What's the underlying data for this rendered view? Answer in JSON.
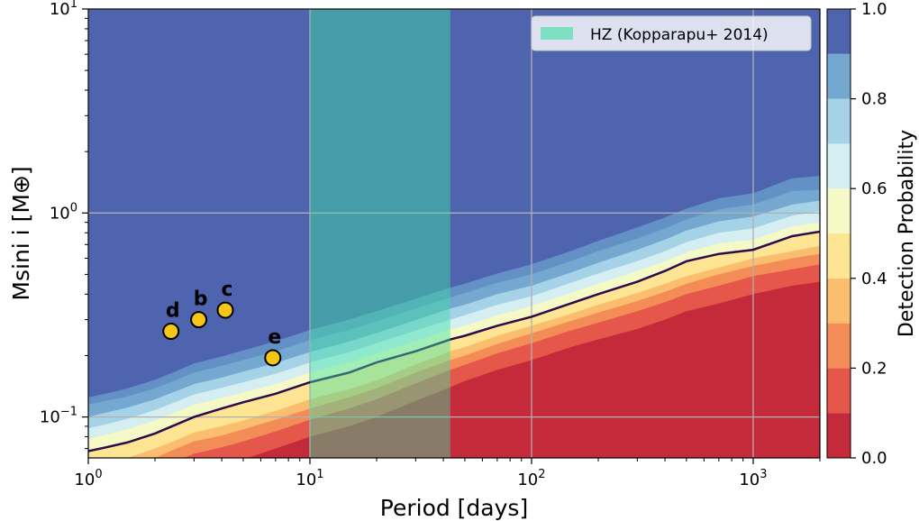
{
  "chart_data": {
    "type": "filled-contour",
    "xlabel": "Period [days]",
    "ylabel": "Msini i [M⊕]",
    "xscale": "log",
    "yscale": "log",
    "xlim": [
      1,
      2000
    ],
    "ylim": [
      0.063,
      10
    ],
    "grid": true,
    "x_ticks": [
      {
        "value": 1,
        "base": "10",
        "exp": "0"
      },
      {
        "value": 10,
        "base": "10",
        "exp": "1"
      },
      {
        "value": 100,
        "base": "10",
        "exp": "2"
      },
      {
        "value": 1000,
        "base": "10",
        "exp": "3"
      }
    ],
    "y_ticks": [
      {
        "value": 0.1,
        "base": "10",
        "exp": "−1"
      },
      {
        "value": 1,
        "base": "10",
        "exp": "0"
      },
      {
        "value": 10,
        "base": "10",
        "exp": "1"
      }
    ],
    "contour_levels": [
      0.0,
      0.1,
      0.2,
      0.3,
      0.4,
      0.5,
      0.6,
      0.7,
      0.8,
      0.9,
      1.0
    ],
    "contour_colors": [
      "#c52a3a",
      "#e4574a",
      "#f48c58",
      "#fbbd6e",
      "#fde593",
      "#f4f9c6",
      "#d4eef2",
      "#a6d2e8",
      "#75a8d0",
      "#6391c5"
    ],
    "top_color": "#4f64ae",
    "contour_period": [
      1,
      1.2,
      1.5,
      2,
      2.5,
      3,
      4,
      5,
      7,
      10,
      15,
      20,
      30,
      43,
      50,
      70,
      100,
      150,
      200,
      300,
      400,
      500,
      700,
      1000,
      1500,
      2000
    ],
    "contour_mass": {
      "0.1": [
        0.035,
        0.037,
        0.04,
        0.045,
        0.05,
        0.055,
        0.058,
        0.062,
        0.07,
        0.08,
        0.09,
        0.1,
        0.12,
        0.14,
        0.15,
        0.17,
        0.19,
        0.22,
        0.24,
        0.27,
        0.3,
        0.33,
        0.36,
        0.4,
        0.44,
        0.46
      ],
      "0.2": [
        0.042,
        0.045,
        0.049,
        0.055,
        0.061,
        0.066,
        0.071,
        0.076,
        0.085,
        0.097,
        0.11,
        0.122,
        0.146,
        0.17,
        0.18,
        0.205,
        0.23,
        0.265,
        0.29,
        0.33,
        0.365,
        0.4,
        0.44,
        0.49,
        0.53,
        0.56
      ],
      "0.3": [
        0.049,
        0.052,
        0.056,
        0.063,
        0.07,
        0.076,
        0.081,
        0.087,
        0.097,
        0.11,
        0.125,
        0.138,
        0.165,
        0.19,
        0.2,
        0.228,
        0.257,
        0.295,
        0.325,
        0.37,
        0.41,
        0.45,
        0.5,
        0.55,
        0.6,
        0.63
      ],
      "0.4": [
        0.056,
        0.059,
        0.063,
        0.07,
        0.077,
        0.084,
        0.09,
        0.096,
        0.107,
        0.122,
        0.137,
        0.151,
        0.181,
        0.21,
        0.22,
        0.25,
        0.28,
        0.32,
        0.355,
        0.405,
        0.45,
        0.49,
        0.54,
        0.6,
        0.65,
        0.69
      ],
      "0.5": [
        0.068,
        0.071,
        0.075,
        0.083,
        0.092,
        0.1,
        0.11,
        0.118,
        0.13,
        0.148,
        0.165,
        0.185,
        0.21,
        0.24,
        0.25,
        0.28,
        0.31,
        0.36,
        0.4,
        0.46,
        0.52,
        0.58,
        0.63,
        0.66,
        0.77,
        0.81
      ],
      "0.6": [
        0.078,
        0.082,
        0.087,
        0.096,
        0.106,
        0.115,
        0.124,
        0.132,
        0.145,
        0.165,
        0.185,
        0.205,
        0.235,
        0.27,
        0.28,
        0.315,
        0.35,
        0.405,
        0.45,
        0.52,
        0.58,
        0.64,
        0.71,
        0.74,
        0.86,
        0.9
      ],
      "0.7": [
        0.088,
        0.092,
        0.098,
        0.108,
        0.119,
        0.129,
        0.139,
        0.148,
        0.163,
        0.185,
        0.208,
        0.23,
        0.265,
        0.3,
        0.315,
        0.355,
        0.39,
        0.455,
        0.505,
        0.58,
        0.65,
        0.72,
        0.8,
        0.84,
        0.97,
        1.02
      ],
      "0.8": [
        0.1,
        0.105,
        0.111,
        0.122,
        0.134,
        0.145,
        0.156,
        0.167,
        0.184,
        0.208,
        0.234,
        0.258,
        0.298,
        0.34,
        0.355,
        0.4,
        0.44,
        0.51,
        0.57,
        0.66,
        0.74,
        0.82,
        0.91,
        0.96,
        1.1,
        1.15
      ],
      "0.9": [
        0.115,
        0.12,
        0.126,
        0.138,
        0.152,
        0.165,
        0.178,
        0.19,
        0.21,
        0.238,
        0.267,
        0.295,
        0.34,
        0.385,
        0.405,
        0.455,
        0.5,
        0.58,
        0.65,
        0.75,
        0.84,
        0.93,
        1.04,
        1.1,
        1.28,
        1.3
      ],
      "1.0": [
        0.125,
        0.13,
        0.138,
        0.152,
        0.168,
        0.183,
        0.198,
        0.212,
        0.235,
        0.267,
        0.3,
        0.33,
        0.38,
        0.43,
        0.45,
        0.505,
        0.56,
        0.65,
        0.73,
        0.85,
        0.95,
        1.05,
        1.18,
        1.25,
        1.48,
        1.52
      ]
    },
    "contour_50_line": {
      "color": "#2d0b4a",
      "period": [
        1,
        1.2,
        1.5,
        2,
        2.5,
        3,
        4,
        5,
        7,
        10,
        15,
        20,
        30,
        43,
        50,
        70,
        100,
        150,
        200,
        300,
        400,
        500,
        700,
        1000,
        1500,
        2000
      ],
      "mass": [
        0.068,
        0.071,
        0.075,
        0.083,
        0.092,
        0.1,
        0.11,
        0.118,
        0.13,
        0.148,
        0.165,
        0.185,
        0.21,
        0.24,
        0.25,
        0.28,
        0.31,
        0.36,
        0.4,
        0.46,
        0.52,
        0.58,
        0.63,
        0.66,
        0.77,
        0.81
      ]
    },
    "hz_band": {
      "label": "HZ (Kopparapu+ 2014)",
      "period_min": 10,
      "period_max": 43,
      "color": "#3ee0a3"
    },
    "legend": {
      "placement": "top-right"
    },
    "planets": {
      "color": "#f5c518",
      "edge_color": "#000000",
      "points": [
        {
          "label": "d",
          "period": 2.36,
          "mass": 0.263
        },
        {
          "label": "b",
          "period": 3.15,
          "mass": 0.3
        },
        {
          "label": "c",
          "period": 4.15,
          "mass": 0.334
        },
        {
          "label": "e",
          "period": 6.8,
          "mass": 0.195
        }
      ]
    },
    "colorbar": {
      "label": "Detection Probability",
      "ticks": [
        "0.0",
        "0.2",
        "0.4",
        "0.6",
        "0.8",
        "1.0"
      ],
      "tick_values": [
        0,
        0.2,
        0.4,
        0.6,
        0.8,
        1.0
      ]
    }
  }
}
